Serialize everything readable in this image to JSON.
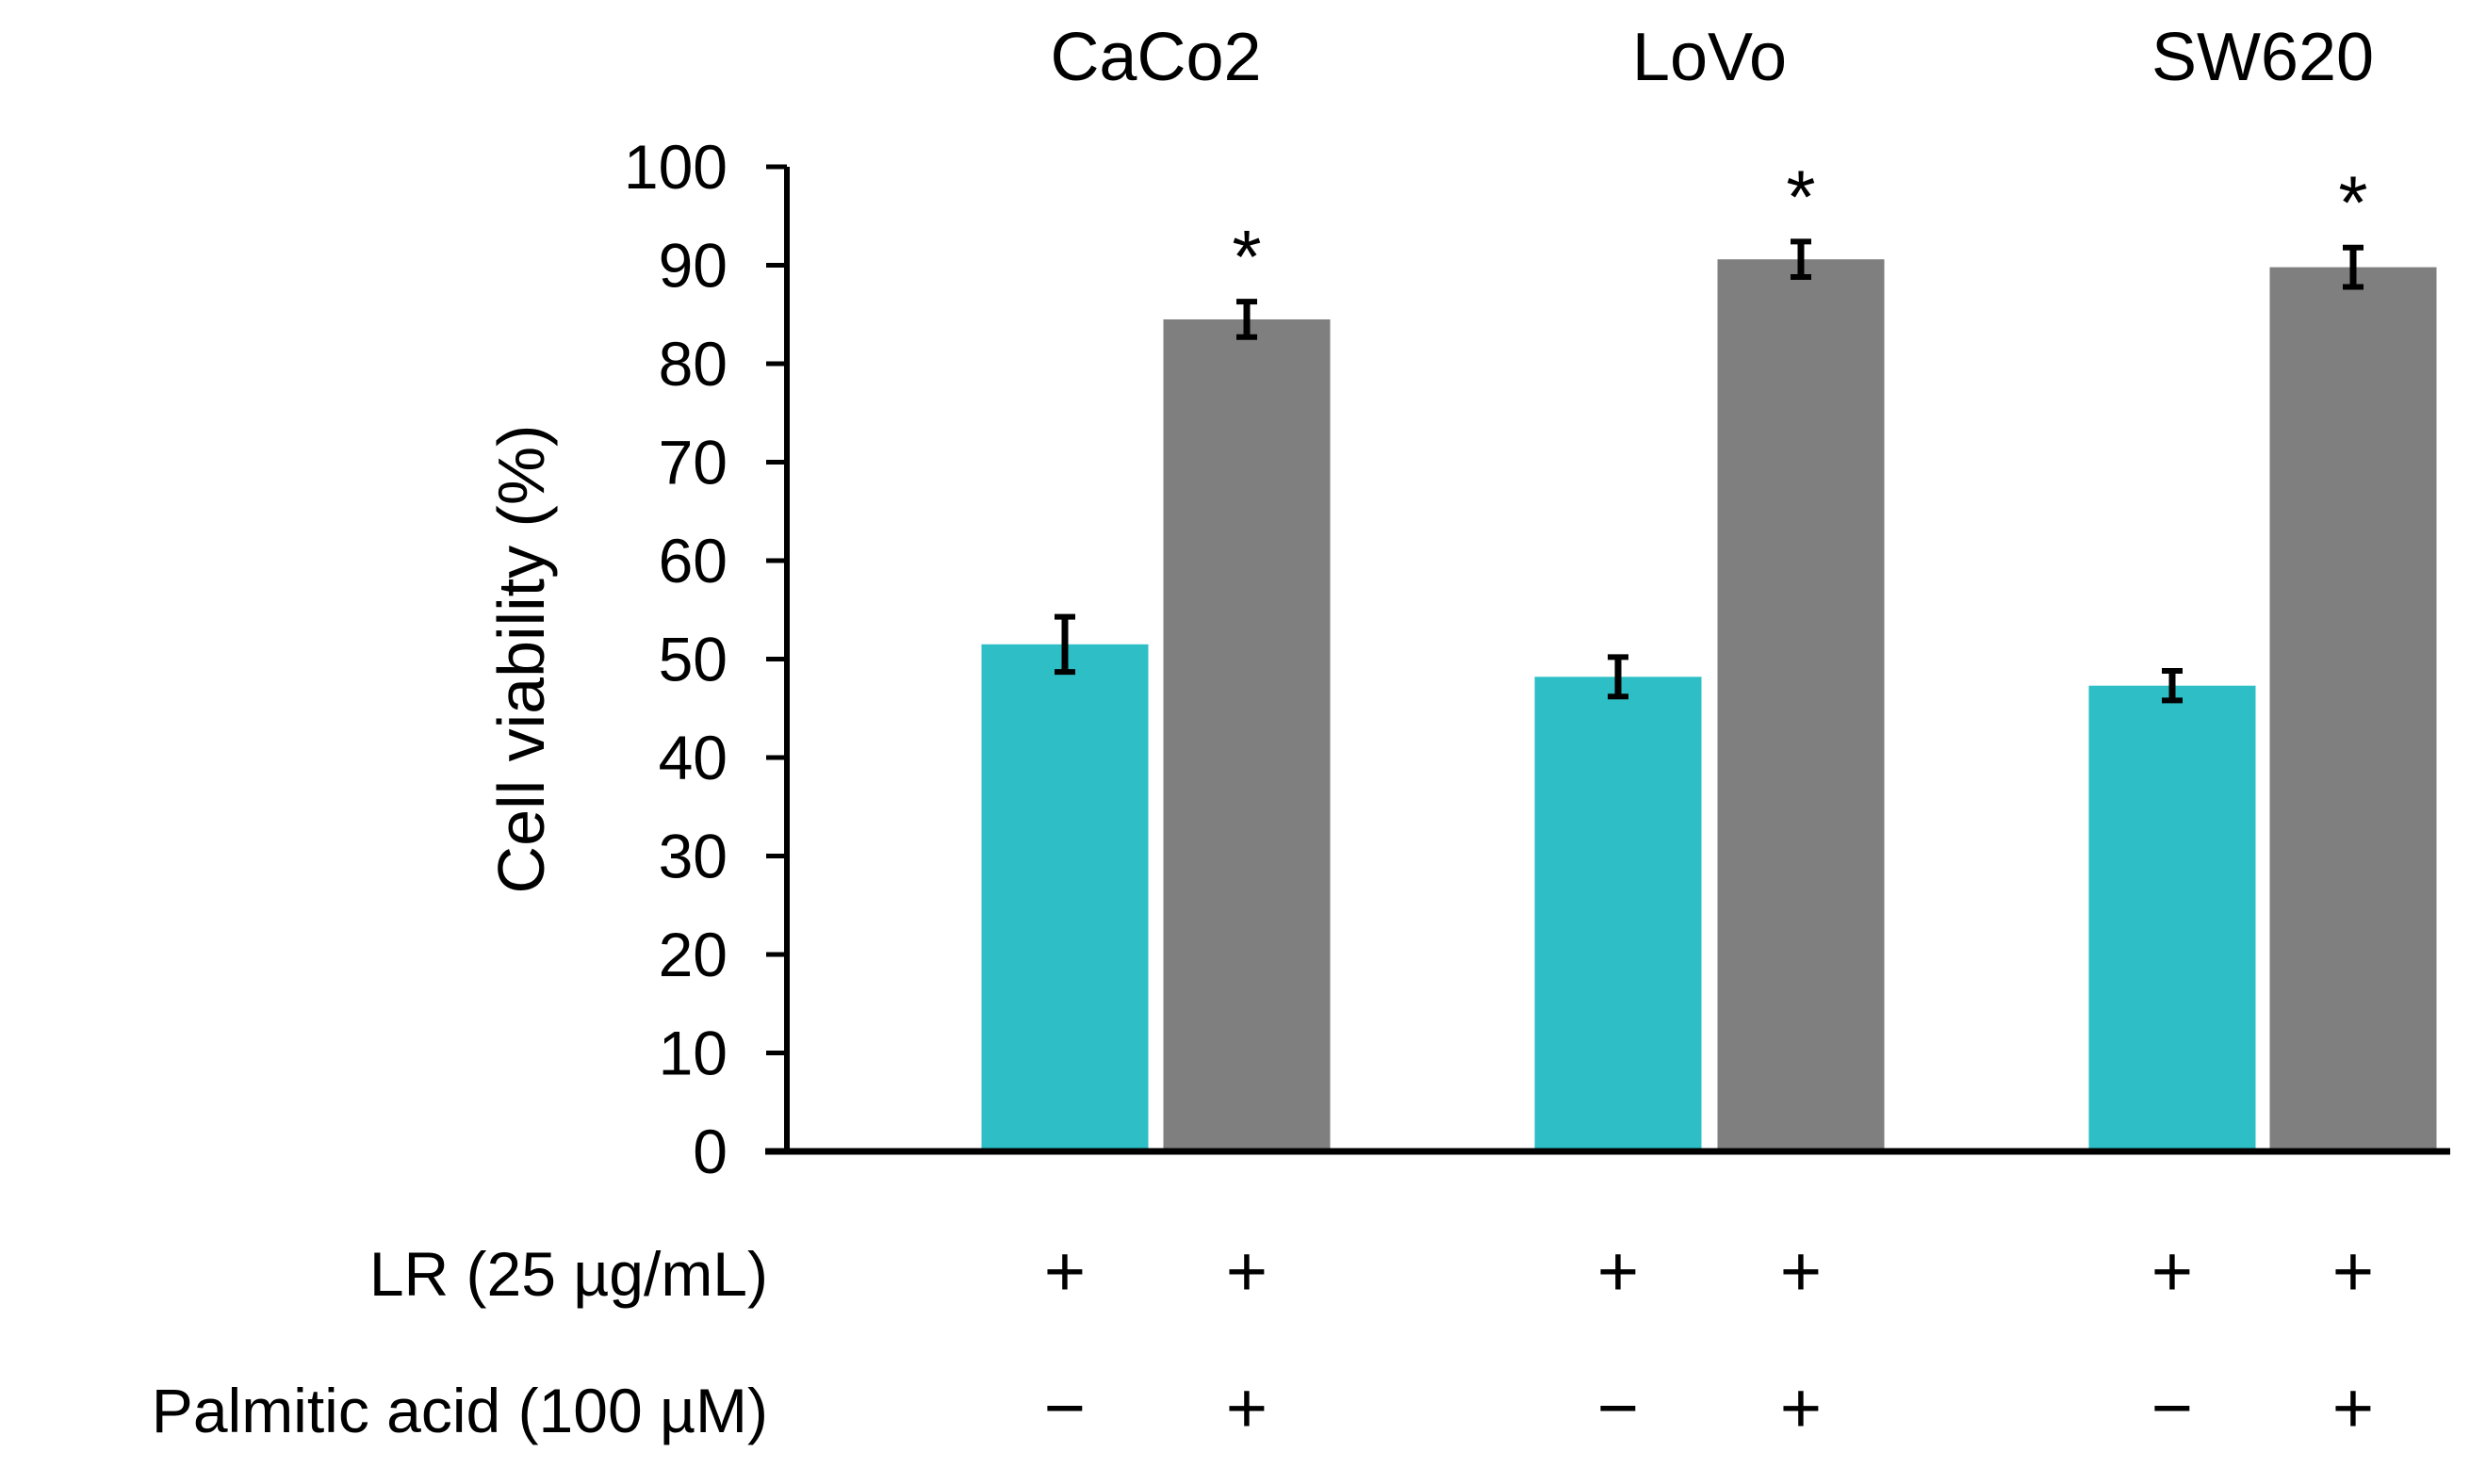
{
  "chart_data": {
    "type": "bar",
    "title": "",
    "xlabel": "",
    "ylabel": "Cell viability (%)",
    "ylim": [
      0,
      100
    ],
    "yticks": [
      0,
      10,
      20,
      30,
      40,
      50,
      60,
      70,
      80,
      90,
      100
    ],
    "grid": false,
    "groups": [
      "CaCo2",
      "LoVo",
      "SW620"
    ],
    "series": [
      {
        "name": "LR + Palmitic acid −",
        "color": "#2dbfc5",
        "values": [
          51.5,
          48.2,
          47.3
        ],
        "errors": [
          2.8,
          2.0,
          1.5
        ]
      },
      {
        "name": "LR + Palmitic acid +",
        "color": "#7f7f7f",
        "values": [
          84.5,
          90.6,
          89.8
        ],
        "errors": [
          1.8,
          1.8,
          2.0
        ]
      }
    ],
    "significance": [
      "*",
      "*",
      "*"
    ],
    "conditions": [
      {
        "label": "LR (25 µg/mL)",
        "signs": [
          "+",
          "+",
          "+",
          "+",
          "+",
          "+"
        ]
      },
      {
        "label": "Palmitic acid (100 µM)",
        "signs": [
          "−",
          "+",
          "−",
          "+",
          "−",
          "+"
        ]
      }
    ]
  }
}
